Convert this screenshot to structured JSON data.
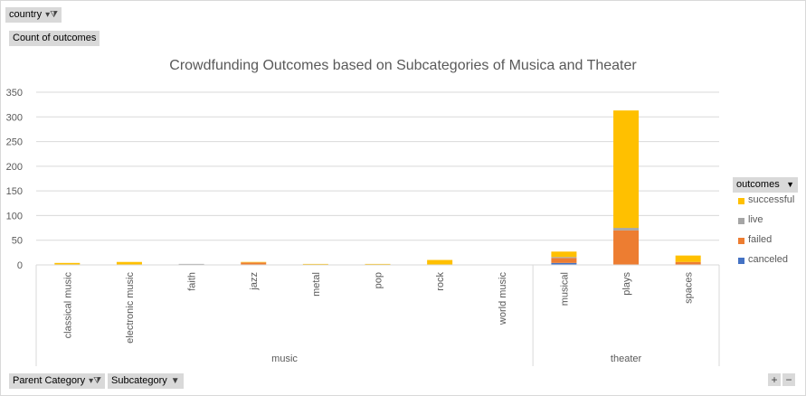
{
  "filters": {
    "country": "country",
    "values_field": "Count of outcomes",
    "parent_category": "Parent Category",
    "subcategory": "Subcategory"
  },
  "legend": {
    "title": "outcomes",
    "items": [
      {
        "label": "successful",
        "color": "#ffc000"
      },
      {
        "label": "live",
        "color": "#a5a5a5"
      },
      {
        "label": "failed",
        "color": "#ed7d31"
      },
      {
        "label": "canceled",
        "color": "#4472c4"
      }
    ]
  },
  "zoom": {
    "plus": "+",
    "minus": "−"
  },
  "chart_data": {
    "type": "bar",
    "stacked": true,
    "title": "Crowdfunding Outcomes based on Subcategories of Musica and Theater",
    "xlabel": "",
    "ylabel": "",
    "ylim": [
      0,
      350
    ],
    "yticks": [
      0,
      50,
      100,
      150,
      200,
      250,
      300,
      350
    ],
    "grid": true,
    "legend_position": "right",
    "categories": [
      "classical music",
      "electronic music",
      "faith",
      "jazz",
      "metal",
      "pop",
      "rock",
      "world music",
      "musical",
      "plays",
      "spaces"
    ],
    "groups": [
      {
        "label": "music",
        "count": 8
      },
      {
        "label": "theater",
        "count": 3
      }
    ],
    "series": [
      {
        "name": "canceled",
        "values": [
          0,
          0,
          0,
          0,
          0,
          0,
          0,
          0,
          4,
          0,
          0
        ]
      },
      {
        "name": "failed",
        "values": [
          0,
          0,
          0,
          5,
          0,
          0,
          0,
          0,
          10,
          70,
          6
        ]
      },
      {
        "name": "live",
        "values": [
          0,
          0,
          2,
          0,
          0,
          0,
          0,
          0,
          2,
          5,
          0
        ]
      },
      {
        "name": "successful",
        "values": [
          4,
          6,
          0,
          1,
          2,
          2,
          10,
          0,
          11,
          238,
          13
        ]
      }
    ]
  }
}
